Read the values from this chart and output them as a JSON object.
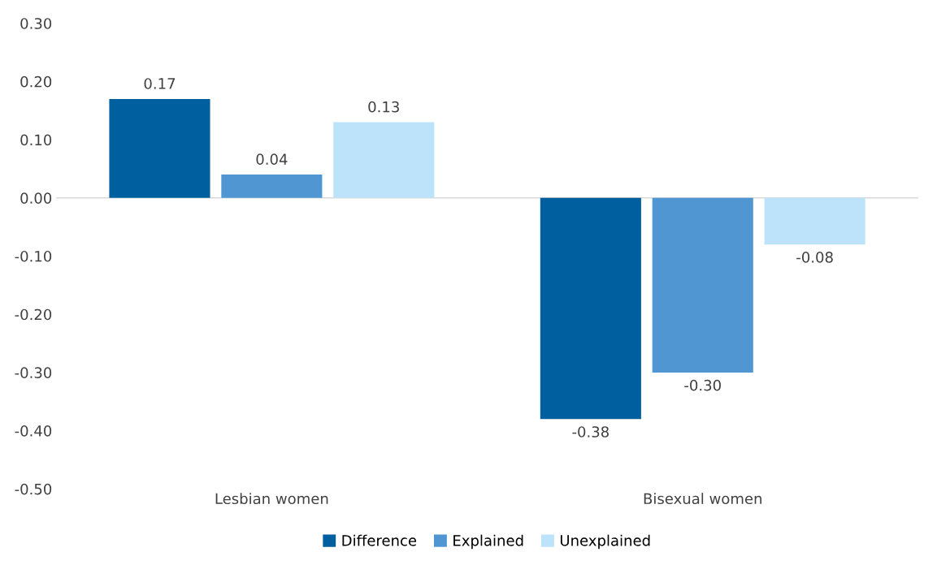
{
  "chart_data": {
    "type": "bar",
    "categories": [
      "Lesbian women",
      "Bisexual women"
    ],
    "series": [
      {
        "name": "Difference",
        "color": "#005f9e",
        "values": [
          0.17,
          -0.38
        ],
        "value_labels": [
          "0.17",
          "-0.38"
        ]
      },
      {
        "name": "Explained",
        "color": "#5096d2",
        "values": [
          0.04,
          -0.3
        ],
        "value_labels": [
          "0.04",
          "-0.30"
        ]
      },
      {
        "name": "Unexplained",
        "color": "#bde3fa",
        "values": [
          0.13,
          -0.08
        ],
        "value_labels": [
          "0.13",
          "-0.08"
        ]
      }
    ],
    "ylim": [
      -0.5,
      0.3
    ],
    "yticks": [
      {
        "value": -0.5,
        "label": "-0.50"
      },
      {
        "value": -0.4,
        "label": "-0.40"
      },
      {
        "value": -0.3,
        "label": "-0.30"
      },
      {
        "value": -0.2,
        "label": "-0.20"
      },
      {
        "value": -0.1,
        "label": "-0.10"
      },
      {
        "value": 0,
        "label": "0.00"
      },
      {
        "value": 0.1,
        "label": "0.10"
      },
      {
        "value": 0.2,
        "label": "0.20"
      },
      {
        "value": 0.3,
        "label": "0.30"
      }
    ],
    "grid": false,
    "ref_lines": [
      {
        "axis": "y",
        "value": 0,
        "color": "#d9d9d9"
      }
    ],
    "legend": "bottom"
  }
}
